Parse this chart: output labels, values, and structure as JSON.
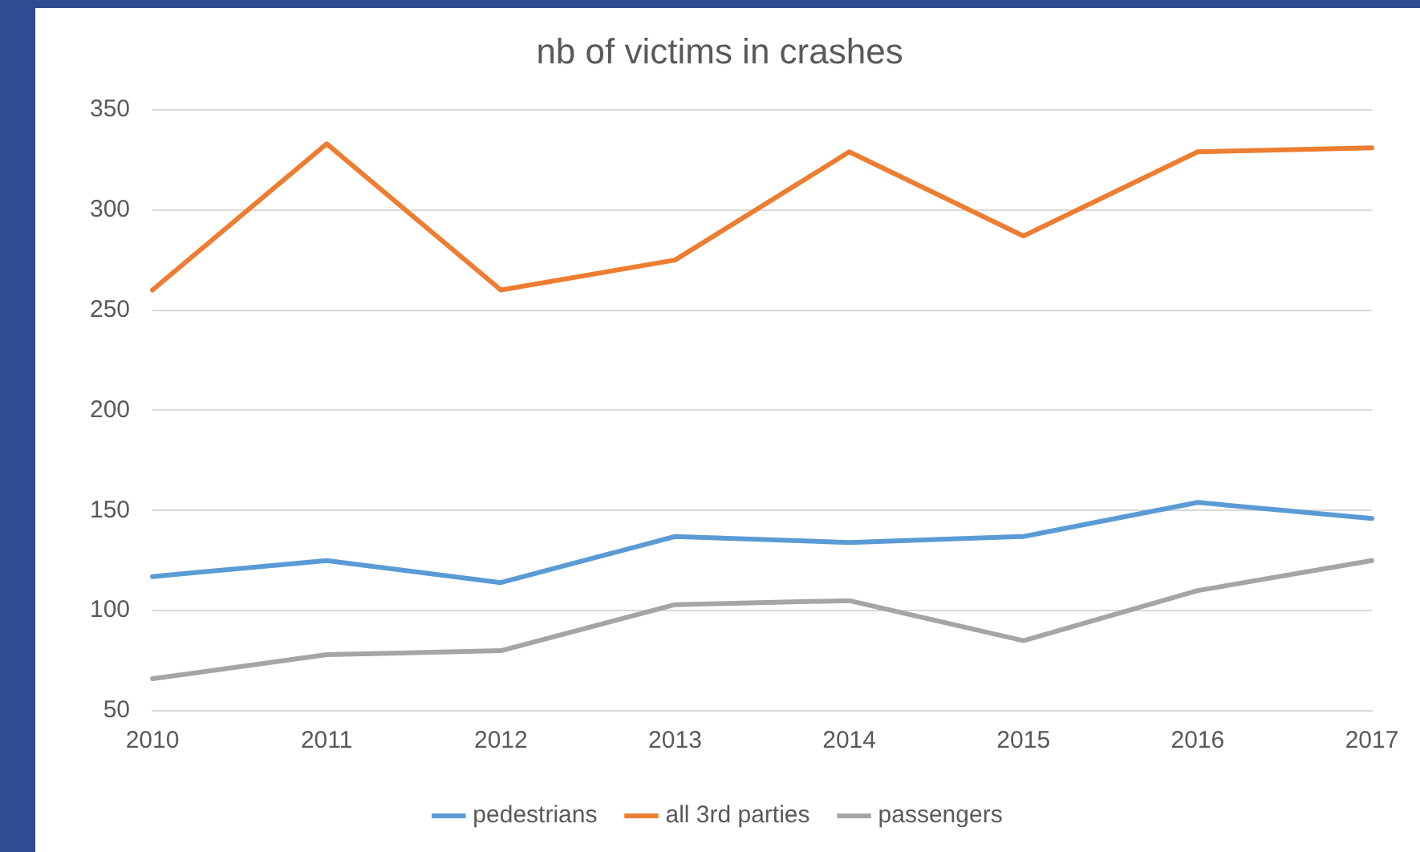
{
  "chart_data": {
    "type": "line",
    "title": "nb of victims in crashes",
    "categories": [
      "2010",
      "2011",
      "2012",
      "2013",
      "2014",
      "2015",
      "2016",
      "2017"
    ],
    "series": [
      {
        "name": "pedestrians",
        "color": "#5b9bd5",
        "values": [
          117,
          125,
          114,
          137,
          134,
          137,
          154,
          146
        ]
      },
      {
        "name": "all 3rd parties",
        "color": "#ed7d31",
        "values": [
          260,
          333,
          260,
          275,
          329,
          287,
          329,
          331
        ]
      },
      {
        "name": "passengers",
        "color": "#a5a5a5",
        "values": [
          66,
          78,
          80,
          103,
          105,
          85,
          110,
          125
        ]
      }
    ],
    "ylim": [
      50,
      350
    ],
    "yticks": [
      50,
      100,
      150,
      200,
      250,
      300,
      350
    ],
    "grid": "y",
    "legend": "bottom",
    "marker": "none",
    "line_style": "solid"
  }
}
